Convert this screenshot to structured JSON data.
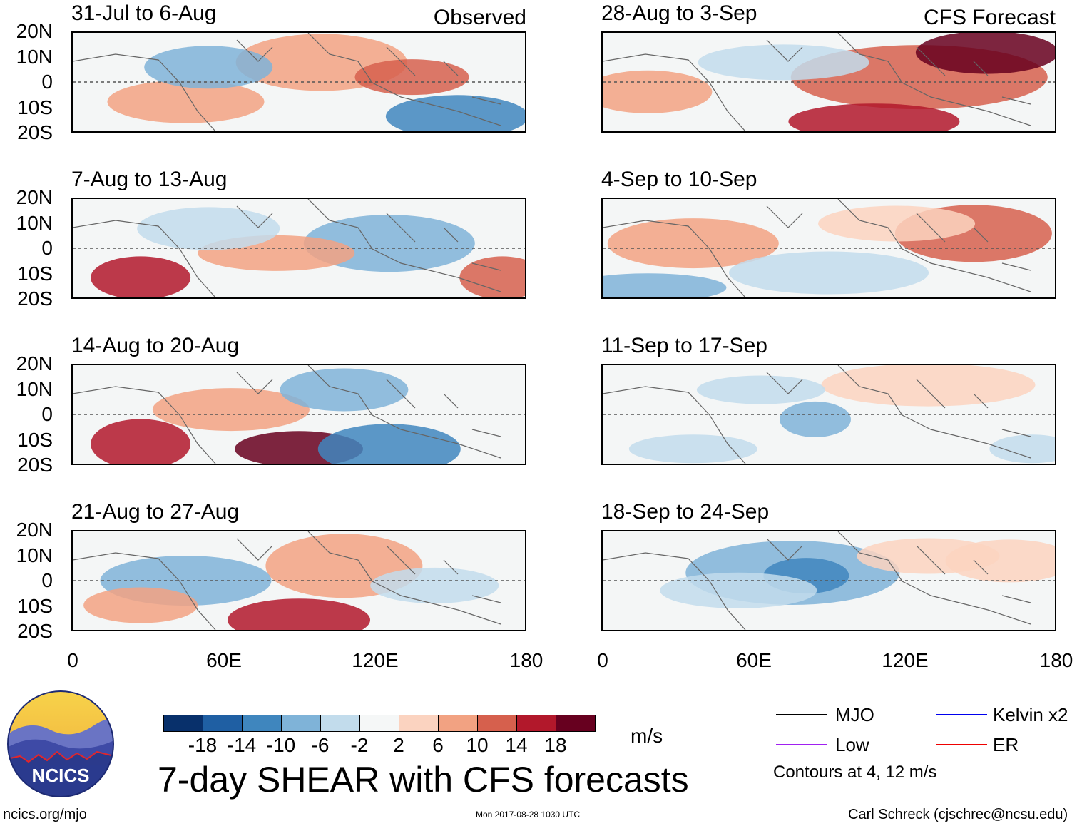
{
  "chart_data": [
    {
      "type": "heatmap",
      "title": "31-Jul to 6-Aug",
      "tag": "Observed",
      "column": "left"
    },
    {
      "type": "heatmap",
      "title": "7-Aug to 13-Aug",
      "tag": "",
      "column": "left"
    },
    {
      "type": "heatmap",
      "title": "14-Aug to 20-Aug",
      "tag": "",
      "column": "left"
    },
    {
      "type": "heatmap",
      "title": "21-Aug to 27-Aug",
      "tag": "",
      "column": "left"
    },
    {
      "type": "heatmap",
      "title": "28-Aug to 3-Sep",
      "tag": "CFS Forecast",
      "column": "right"
    },
    {
      "type": "heatmap",
      "title": "4-Sep to 10-Sep",
      "tag": "",
      "column": "right"
    },
    {
      "type": "heatmap",
      "title": "11-Sep to 17-Sep",
      "tag": "",
      "column": "right"
    },
    {
      "type": "heatmap",
      "title": "18-Sep to 24-Sep",
      "tag": "",
      "column": "right"
    }
  ],
  "axes": {
    "lat_labels": [
      "20N",
      "10N",
      "0",
      "10S",
      "20S"
    ],
    "lon_labels": [
      "0",
      "60E",
      "120E",
      "180"
    ],
    "lat_range": [
      -20,
      20
    ],
    "lon_range": [
      0,
      180
    ]
  },
  "colorbar": {
    "ticks": [
      "-18",
      "-14",
      "-10",
      "-6",
      "-2",
      "2",
      "6",
      "10",
      "14",
      "18"
    ],
    "colors": [
      "#08306b",
      "#1f5fa3",
      "#3f86be",
      "#7fb3d8",
      "#c2dcec",
      "#f5f7f7",
      "#fbd3c0",
      "#f2a282",
      "#d6604d",
      "#b2182b",
      "#67001f"
    ],
    "units": "m/s"
  },
  "title": "7-day SHEAR with CFS forecasts",
  "legend": {
    "items": [
      {
        "label": "MJO",
        "color": "#000000"
      },
      {
        "label": "Kelvin x2",
        "color": "#0000ee"
      },
      {
        "label": "Low",
        "color": "#a020f0"
      },
      {
        "label": "ER",
        "color": "#ee0000"
      }
    ],
    "note": "Contours at 4, 12 m/s"
  },
  "logo": {
    "text": "NCICS"
  },
  "footer": {
    "url": "ncics.org/mjo",
    "timestamp": "Mon 2017-08-28 1030 UTC",
    "credit": "Carl Schreck (cjschrec@ncsu.edu)"
  }
}
